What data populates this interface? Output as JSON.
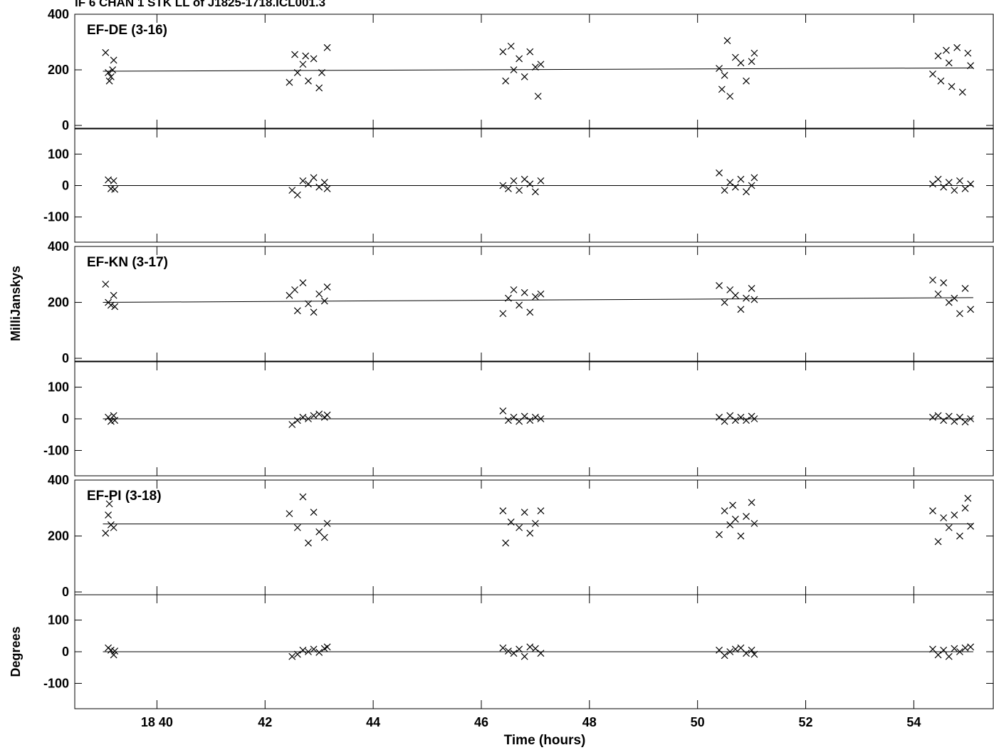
{
  "title": "IF 6   CHAN 1   STK LL  of  J1825-1718.ICL001.3",
  "xlabel": "Time (hours)",
  "ylabels": [
    "MilliJanskys",
    "Degrees"
  ],
  "xlim": [
    38.48,
    55.47
  ],
  "xticks": [
    {
      "value": 40,
      "label": "18 40"
    },
    42,
    44,
    46,
    48,
    50,
    52,
    54
  ],
  "chart_data": [
    {
      "type": "scatter",
      "label": "EF-DE (3-16)",
      "color": "#000000",
      "ylim": [
        -10,
        400
      ],
      "yticks": [
        0,
        200,
        400
      ],
      "x": [
        39.05,
        39.1,
        39.12,
        39.15,
        39.2,
        39.18,
        42.45,
        42.55,
        42.6,
        42.7,
        42.8,
        42.9,
        43.0,
        43.05,
        43.15,
        42.75,
        46.4,
        46.45,
        46.55,
        46.6,
        46.7,
        46.8,
        46.9,
        47.0,
        47.05,
        47.1,
        50.4,
        50.5,
        50.55,
        50.6,
        50.7,
        50.8,
        50.9,
        51.0,
        51.05,
        50.45,
        54.35,
        54.45,
        54.5,
        54.6,
        54.7,
        54.8,
        54.9,
        55.0,
        55.05,
        54.65
      ],
      "values": [
        262,
        190,
        160,
        175,
        235,
        200,
        155,
        255,
        190,
        220,
        160,
        240,
        135,
        190,
        280,
        250,
        265,
        160,
        285,
        200,
        240,
        175,
        265,
        210,
        105,
        220,
        205,
        180,
        305,
        105,
        245,
        225,
        160,
        230,
        260,
        130,
        185,
        250,
        160,
        270,
        140,
        280,
        120,
        260,
        215,
        225
      ],
      "fit_x": [
        39.0,
        55.1
      ],
      "fit_values": [
        195,
        207
      ]
    },
    {
      "type": "scatter",
      "color": "#000000",
      "ylim": [
        -180,
        180
      ],
      "yticks": [
        -100,
        0,
        100
      ],
      "x": [
        39.1,
        39.15,
        39.2,
        39.22,
        42.5,
        42.6,
        42.7,
        42.8,
        42.9,
        43.0,
        43.1,
        43.15,
        46.4,
        46.5,
        46.6,
        46.7,
        46.8,
        46.9,
        47.0,
        47.1,
        50.4,
        50.5,
        50.6,
        50.7,
        50.8,
        50.9,
        51.0,
        51.05,
        54.35,
        54.45,
        54.55,
        54.65,
        54.75,
        54.85,
        54.95,
        55.05
      ],
      "values": [
        18,
        -10,
        15,
        -12,
        -15,
        -30,
        15,
        5,
        25,
        -5,
        10,
        -10,
        0,
        -10,
        15,
        -15,
        20,
        5,
        -20,
        15,
        40,
        -15,
        10,
        -5,
        20,
        -20,
        0,
        25,
        5,
        20,
        -5,
        10,
        -15,
        15,
        -10,
        5
      ],
      "fit_x": [
        39.0,
        55.1
      ],
      "fit_values": [
        0,
        0
      ]
    },
    {
      "type": "scatter",
      "label": "EF-KN (3-17)",
      "color": "#000000",
      "ylim": [
        -10,
        400
      ],
      "yticks": [
        0,
        200,
        400
      ],
      "x": [
        39.05,
        39.1,
        39.15,
        39.2,
        39.22,
        42.45,
        42.55,
        42.6,
        42.7,
        42.8,
        42.9,
        43.0,
        43.1,
        43.15,
        46.4,
        46.5,
        46.6,
        46.7,
        46.8,
        46.9,
        47.0,
        47.1,
        50.4,
        50.5,
        50.6,
        50.7,
        50.8,
        50.9,
        51.0,
        51.05,
        54.35,
        54.45,
        54.55,
        54.65,
        54.75,
        54.85,
        54.95,
        55.05
      ],
      "values": [
        265,
        200,
        190,
        225,
        185,
        225,
        245,
        170,
        270,
        195,
        165,
        230,
        205,
        255,
        160,
        215,
        245,
        190,
        235,
        165,
        220,
        230,
        260,
        200,
        245,
        225,
        175,
        215,
        250,
        210,
        280,
        230,
        270,
        200,
        215,
        160,
        250,
        175
      ],
      "fit_x": [
        39.0,
        55.1
      ],
      "fit_values": [
        200,
        217
      ]
    },
    {
      "type": "scatter",
      "color": "#000000",
      "ylim": [
        -180,
        180
      ],
      "yticks": [
        -100,
        0,
        100
      ],
      "x": [
        39.1,
        39.15,
        39.2,
        39.22,
        42.5,
        42.6,
        42.7,
        42.8,
        42.9,
        43.0,
        43.1,
        43.15,
        46.4,
        46.5,
        46.6,
        46.7,
        46.8,
        46.9,
        47.0,
        47.1,
        50.4,
        50.5,
        50.6,
        50.7,
        50.8,
        50.9,
        51.0,
        51.05,
        54.35,
        54.45,
        54.55,
        54.65,
        54.75,
        54.85,
        54.95,
        55.05
      ],
      "values": [
        5,
        -8,
        10,
        -5,
        -18,
        -5,
        5,
        0,
        10,
        15,
        5,
        12,
        25,
        -5,
        5,
        -8,
        8,
        -5,
        5,
        0,
        5,
        -8,
        10,
        -5,
        5,
        -5,
        8,
        0,
        5,
        10,
        -5,
        8,
        -8,
        5,
        -10,
        0
      ],
      "fit_x": [
        39.0,
        55.1
      ],
      "fit_values": [
        0,
        0
      ]
    },
    {
      "type": "scatter",
      "label": "EF-PI (3-18)",
      "color": "#000000",
      "ylim": [
        -10,
        400
      ],
      "yticks": [
        0,
        200,
        400
      ],
      "x": [
        39.05,
        39.1,
        39.12,
        39.15,
        39.2,
        42.45,
        42.6,
        42.7,
        42.8,
        42.9,
        43.0,
        43.1,
        43.15,
        46.4,
        46.45,
        46.55,
        46.7,
        46.8,
        46.9,
        47.0,
        47.1,
        50.4,
        50.5,
        50.6,
        50.65,
        50.7,
        50.8,
        50.9,
        51.0,
        51.05,
        54.35,
        54.45,
        54.55,
        54.65,
        54.75,
        54.85,
        54.95,
        55.0,
        55.05
      ],
      "values": [
        210,
        275,
        315,
        240,
        230,
        280,
        230,
        340,
        175,
        285,
        215,
        195,
        245,
        290,
        175,
        250,
        230,
        285,
        210,
        245,
        290,
        205,
        290,
        240,
        310,
        260,
        200,
        270,
        320,
        245,
        290,
        180,
        265,
        230,
        275,
        200,
        300,
        335,
        235
      ],
      "fit_x": [
        39.0,
        55.1
      ],
      "fit_values": [
        243,
        243
      ]
    },
    {
      "type": "scatter",
      "color": "#000000",
      "ylim": [
        -180,
        180
      ],
      "yticks": [
        -100,
        0,
        100
      ],
      "x": [
        39.1,
        39.15,
        39.2,
        39.22,
        42.5,
        42.6,
        42.7,
        42.8,
        42.9,
        43.0,
        43.1,
        43.15,
        46.4,
        46.5,
        46.6,
        46.7,
        46.8,
        46.9,
        47.0,
        47.1,
        50.4,
        50.5,
        50.6,
        50.7,
        50.8,
        50.9,
        51.0,
        51.05,
        54.35,
        54.45,
        54.55,
        54.65,
        54.75,
        54.85,
        54.95,
        55.05
      ],
      "values": [
        12,
        5,
        -10,
        2,
        -15,
        -8,
        5,
        0,
        8,
        -2,
        10,
        15,
        12,
        2,
        -5,
        8,
        -15,
        15,
        10,
        -5,
        5,
        -12,
        0,
        8,
        12,
        -5,
        5,
        -8,
        8,
        -10,
        5,
        -15,
        10,
        0,
        12,
        15
      ],
      "fit_x": [
        39.0,
        55.1
      ],
      "fit_values": [
        0,
        0
      ]
    }
  ]
}
